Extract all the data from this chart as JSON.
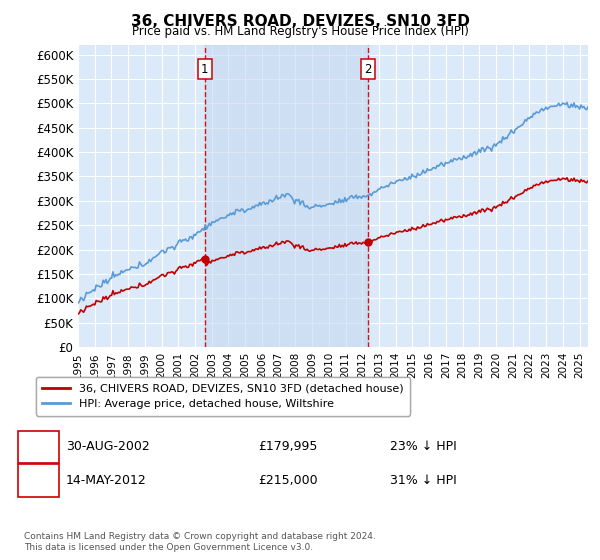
{
  "title": "36, CHIVERS ROAD, DEVIZES, SN10 3FD",
  "subtitle": "Price paid vs. HM Land Registry's House Price Index (HPI)",
  "hpi_label": "HPI: Average price, detached house, Wiltshire",
  "property_label": "36, CHIVERS ROAD, DEVIZES, SN10 3FD (detached house)",
  "footnote": "Contains HM Land Registry data © Crown copyright and database right 2024.\nThis data is licensed under the Open Government Licence v3.0.",
  "sale1_date": "30-AUG-2002",
  "sale1_price": 179995,
  "sale1_pct": "23% ↓ HPI",
  "sale2_date": "14-MAY-2012",
  "sale2_price": 215000,
  "sale2_pct": "31% ↓ HPI",
  "ylim": [
    0,
    620000
  ],
  "yticks": [
    0,
    50000,
    100000,
    150000,
    200000,
    250000,
    300000,
    350000,
    400000,
    450000,
    500000,
    550000,
    600000
  ],
  "plot_bg": "#dce9f8",
  "shade_color": "#c5d9f0",
  "hpi_color": "#5b9bd5",
  "price_color": "#c00000",
  "vline_color": "#cc0000",
  "grid_color": "#ffffff",
  "xlim_start": 1995,
  "xlim_end": 2025.5,
  "sale1_x": 2002.583,
  "sale2_x": 2012.333
}
